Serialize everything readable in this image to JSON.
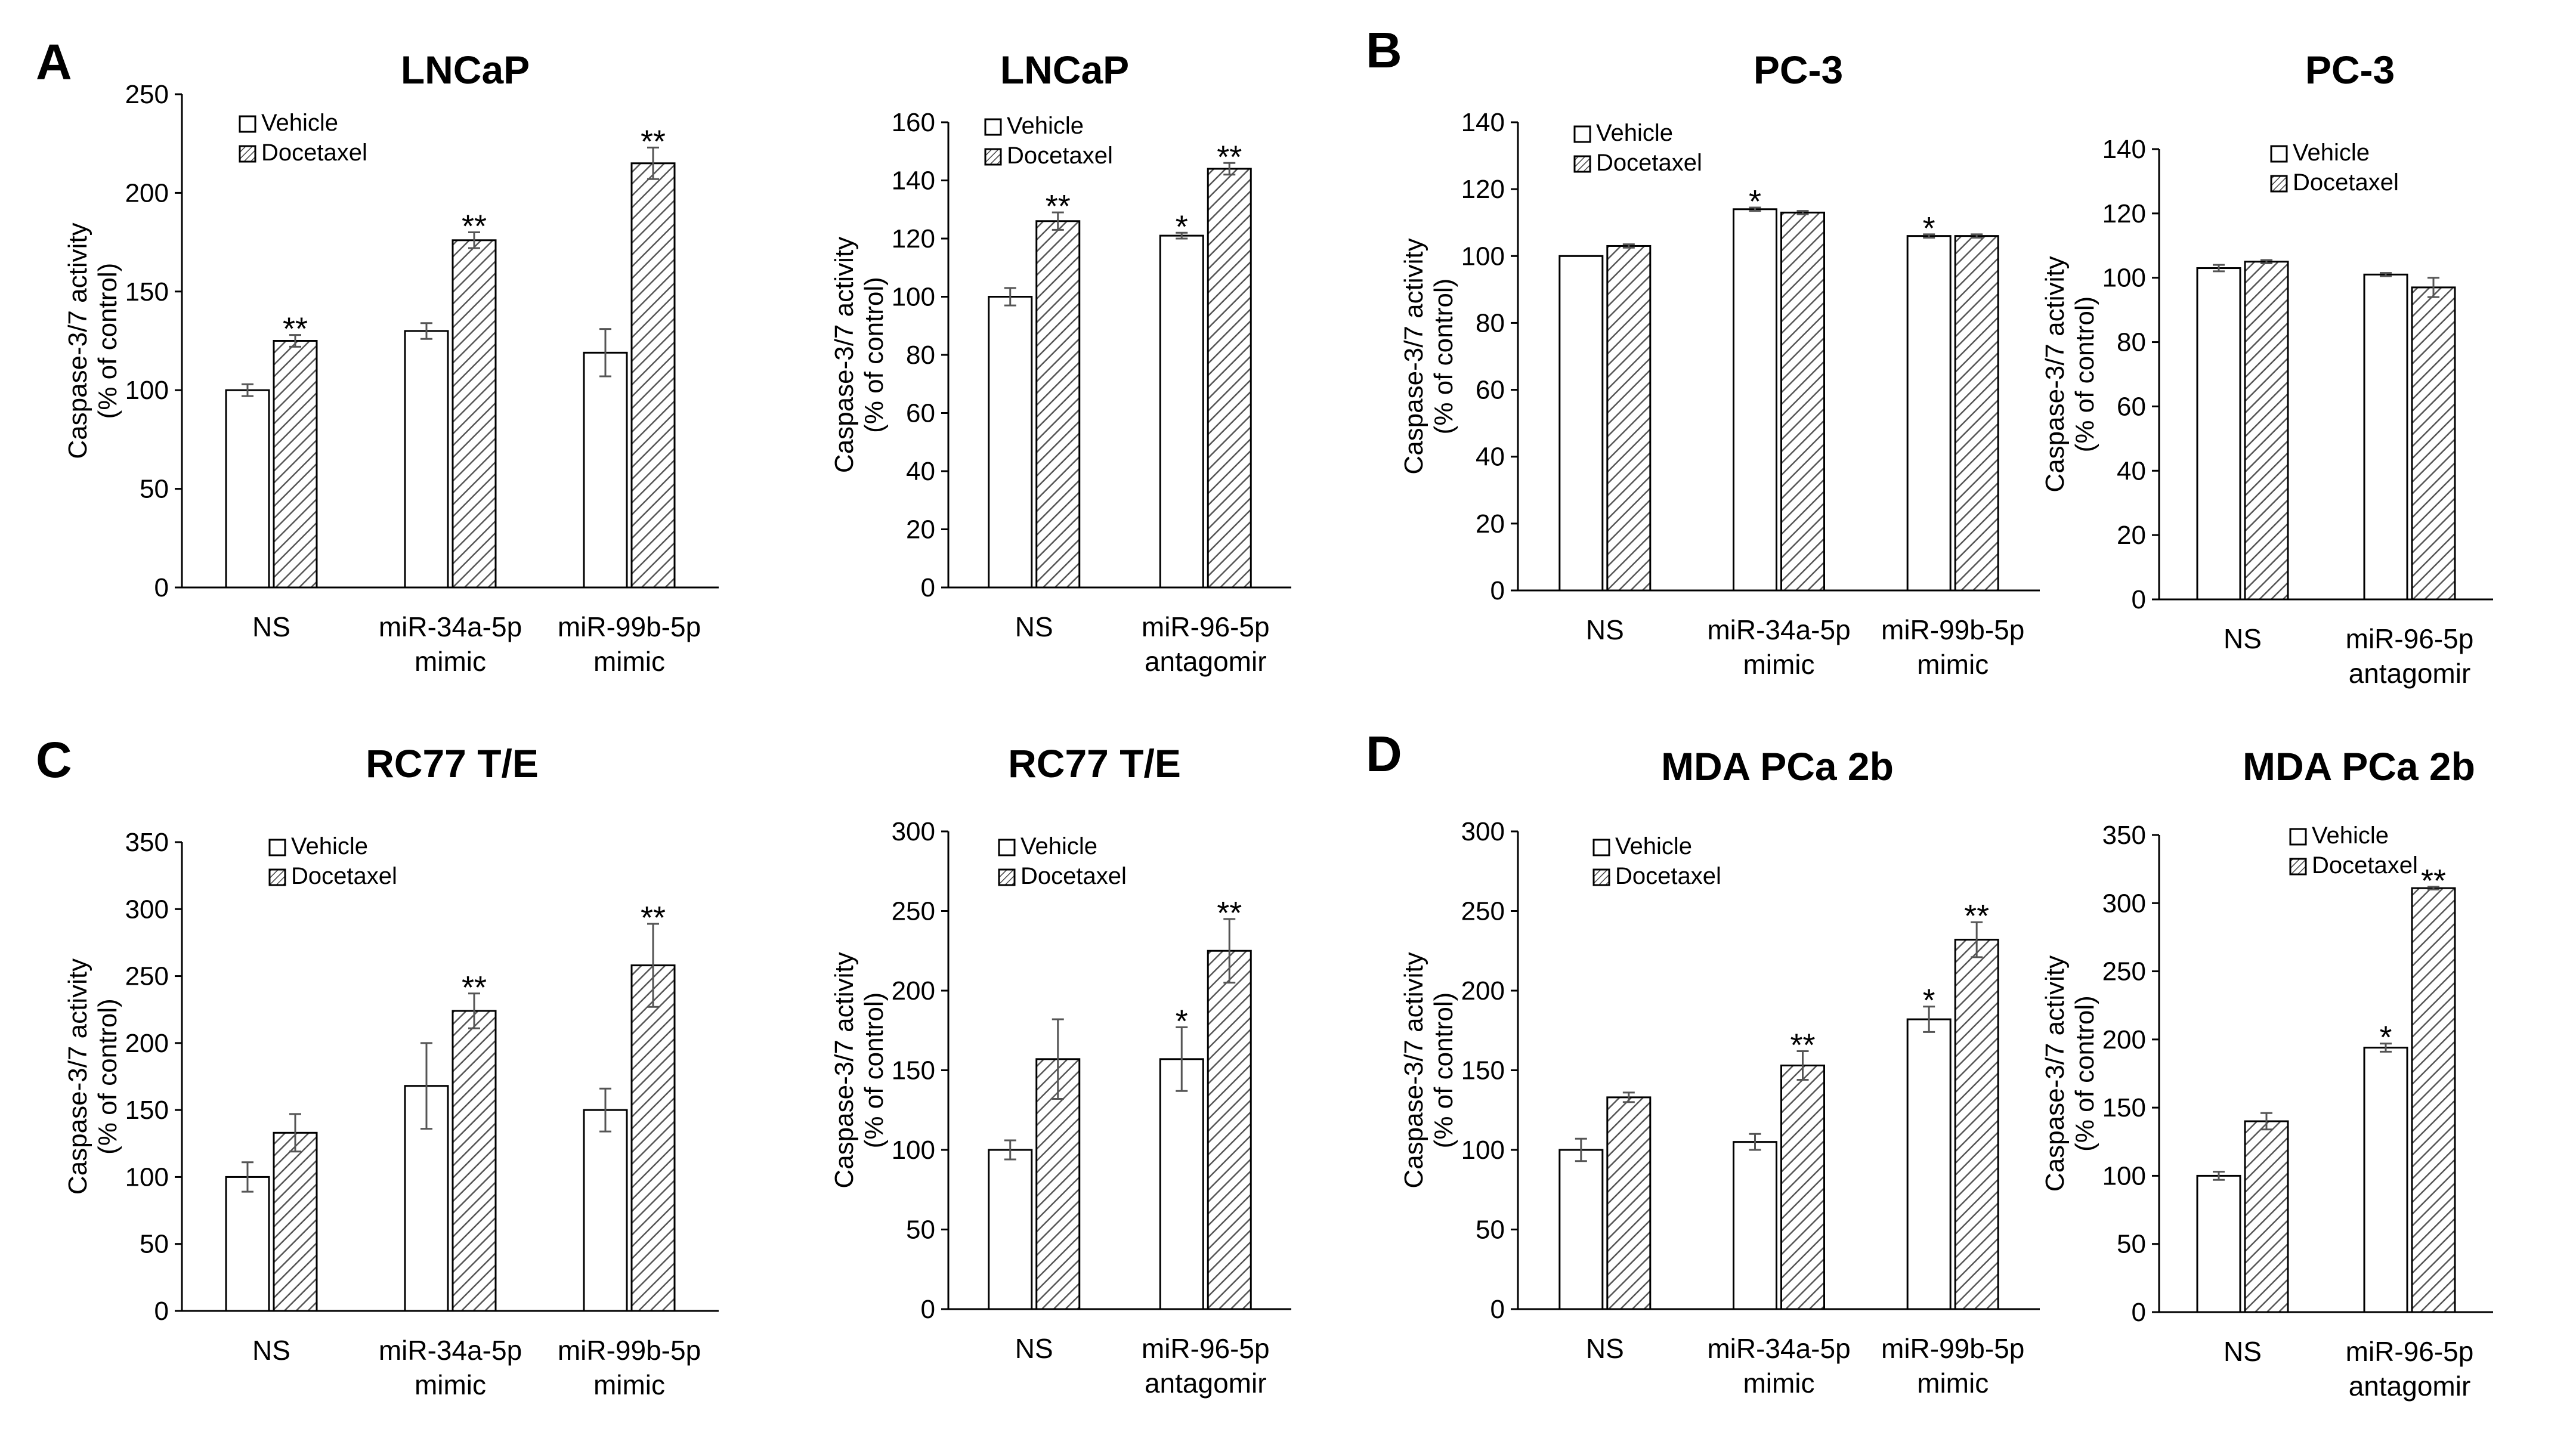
{
  "panel_letters": [
    "A",
    "B",
    "C",
    "D"
  ],
  "chart_data": [
    {
      "type": "bar",
      "title": "LNCaP",
      "ylabel": [
        "Caspase-3/7 activity",
        "(% of control)"
      ],
      "ylim": [
        0,
        250
      ],
      "yticks": [
        0,
        50,
        100,
        150,
        200,
        250
      ],
      "categories": [
        [
          "NS"
        ],
        [
          "miR-34a-5p",
          "mimic"
        ],
        [
          "miR-99b-5p",
          "mimic"
        ]
      ],
      "series": [
        {
          "name": "Vehicle",
          "values": [
            100,
            130,
            119
          ],
          "errors": [
            3,
            4,
            12
          ],
          "marks": [
            "",
            "",
            ""
          ]
        },
        {
          "name": "Docetaxel",
          "values": [
            125,
            176,
            215
          ],
          "errors": [
            3,
            4,
            8
          ],
          "marks": [
            "**",
            "**",
            "**"
          ]
        }
      ],
      "legend": "top-left",
      "grid": false
    },
    {
      "type": "bar",
      "title": "LNCaP",
      "ylabel": [
        "Caspase-3/7 activity",
        "(% of control)"
      ],
      "ylim": [
        0,
        160
      ],
      "yticks": [
        0,
        20,
        40,
        60,
        80,
        100,
        120,
        140,
        160
      ],
      "categories": [
        [
          "NS"
        ],
        [
          "miR-96-5p",
          "antagomir"
        ]
      ],
      "series": [
        {
          "name": "Vehicle",
          "values": [
            100,
            121
          ],
          "errors": [
            3,
            1
          ],
          "marks": [
            "",
            "*"
          ]
        },
        {
          "name": "Docetaxel",
          "values": [
            126,
            144
          ],
          "errors": [
            3,
            2
          ],
          "marks": [
            "**",
            "**"
          ]
        }
      ],
      "legend": "top-left",
      "grid": false
    },
    {
      "type": "bar",
      "title": "PC-3",
      "ylabel": [
        "Caspase-3/7 activity",
        "(% of control)"
      ],
      "ylim": [
        0,
        140
      ],
      "yticks": [
        0,
        20,
        40,
        60,
        80,
        100,
        120,
        140
      ],
      "categories": [
        [
          "NS"
        ],
        [
          "miR-34a-5p",
          "mimic"
        ],
        [
          "miR-99b-5p",
          "mimic"
        ]
      ],
      "series": [
        {
          "name": "Vehicle",
          "values": [
            100,
            114,
            106
          ],
          "errors": [
            0,
            0.5,
            0.5
          ],
          "marks": [
            "",
            "*",
            "*"
          ]
        },
        {
          "name": "Docetaxel",
          "values": [
            103,
            113,
            106
          ],
          "errors": [
            0.5,
            0.5,
            0.5
          ],
          "marks": [
            "",
            "",
            ""
          ]
        }
      ],
      "legend": "top-left",
      "grid": false
    },
    {
      "type": "bar",
      "title": "PC-3",
      "ylabel": [
        "Caspase-3/7 activity",
        "(% of control)"
      ],
      "ylim": [
        0,
        140
      ],
      "yticks": [
        0,
        20,
        40,
        60,
        80,
        100,
        120,
        140
      ],
      "categories": [
        [
          "NS"
        ],
        [
          "miR-96-5p",
          "antagomir"
        ]
      ],
      "series": [
        {
          "name": "Vehicle",
          "values": [
            103,
            101
          ],
          "errors": [
            1,
            0.5
          ],
          "marks": [
            "",
            ""
          ]
        },
        {
          "name": "Docetaxel",
          "values": [
            105,
            97
          ],
          "errors": [
            0.5,
            3
          ],
          "marks": [
            "",
            ""
          ]
        }
      ],
      "legend": "top-left",
      "grid": false
    },
    {
      "type": "bar",
      "title": "RC77 T/E",
      "ylabel": [
        "Caspase-3/7 activity",
        "(% of control)"
      ],
      "ylim": [
        0,
        350
      ],
      "yticks": [
        0,
        50,
        100,
        150,
        200,
        250,
        300,
        350
      ],
      "categories": [
        [
          "NS"
        ],
        [
          "miR-34a-5p",
          "mimic"
        ],
        [
          "miR-99b-5p",
          "mimic"
        ]
      ],
      "series": [
        {
          "name": "Vehicle",
          "values": [
            100,
            168,
            150
          ],
          "errors": [
            11,
            32,
            16
          ],
          "marks": [
            "",
            "",
            ""
          ]
        },
        {
          "name": "Docetaxel",
          "values": [
            133,
            224,
            258
          ],
          "errors": [
            14,
            13,
            31
          ],
          "marks": [
            "",
            "**",
            "**"
          ]
        }
      ],
      "legend": "top-center",
      "grid": false
    },
    {
      "type": "bar",
      "title": "RC77 T/E",
      "ylabel": [
        "Caspase-3/7 activity",
        "(% of control)"
      ],
      "ylim": [
        0,
        300
      ],
      "yticks": [
        0,
        50,
        100,
        150,
        200,
        250,
        300
      ],
      "categories": [
        [
          "NS"
        ],
        [
          "miR-96-5p",
          "antagomir"
        ]
      ],
      "series": [
        {
          "name": "Vehicle",
          "values": [
            100,
            157
          ],
          "errors": [
            6,
            20
          ],
          "marks": [
            "",
            "*"
          ]
        },
        {
          "name": "Docetaxel",
          "values": [
            157,
            225
          ],
          "errors": [
            25,
            20
          ],
          "marks": [
            "",
            "**"
          ]
        }
      ],
      "legend": "top-center",
      "grid": false
    },
    {
      "type": "bar",
      "title": "MDA PCa 2b",
      "ylabel": [
        "Caspase-3/7 activity",
        "(% of control)"
      ],
      "ylim": [
        0,
        300
      ],
      "yticks": [
        0,
        50,
        100,
        150,
        200,
        250,
        300
      ],
      "categories": [
        [
          "NS"
        ],
        [
          "miR-34a-5p",
          "mimic"
        ],
        [
          "miR-99b-5p",
          "mimic"
        ]
      ],
      "series": [
        {
          "name": "Vehicle",
          "values": [
            100,
            105,
            182
          ],
          "errors": [
            7,
            5,
            8
          ],
          "marks": [
            "",
            "",
            "*"
          ]
        },
        {
          "name": "Docetaxel",
          "values": [
            133,
            153,
            232
          ],
          "errors": [
            3,
            9,
            11
          ],
          "marks": [
            "",
            "**",
            "**"
          ]
        }
      ],
      "legend": "top-left",
      "grid": false
    },
    {
      "type": "bar",
      "title": "MDA PCa 2b",
      "ylabel": [
        "Caspase-3/7 activity",
        "(% of control)"
      ],
      "ylim": [
        0,
        350
      ],
      "yticks": [
        0,
        50,
        100,
        150,
        200,
        250,
        300,
        350
      ],
      "categories": [
        [
          "NS"
        ],
        [
          "miR-96-5p",
          "antagomir"
        ]
      ],
      "series": [
        {
          "name": "Vehicle",
          "values": [
            100,
            194
          ],
          "errors": [
            3,
            3
          ],
          "marks": [
            "",
            "*"
          ]
        },
        {
          "name": "Docetaxel",
          "values": [
            140,
            311
          ],
          "errors": [
            6,
            1
          ],
          "marks": [
            "",
            "**"
          ]
        }
      ],
      "legend": "top-left",
      "grid": false
    }
  ]
}
